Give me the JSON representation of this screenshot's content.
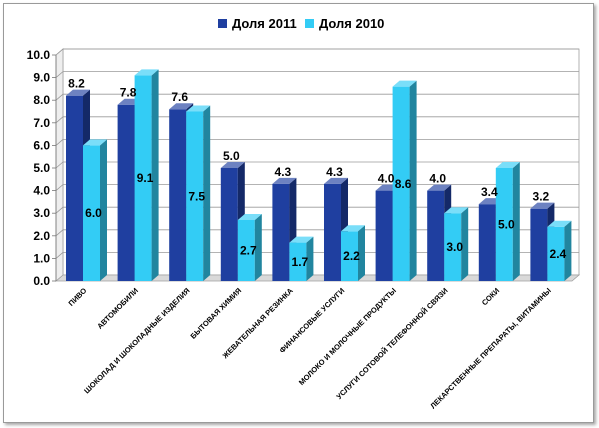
{
  "chart_data": {
    "type": "bar",
    "categories": [
      "ПИВО",
      "АВТОМОБИЛИ",
      "ШОКОЛАД И ШОКОЛАДНЫЕ ИЗДЕЛИЯ",
      "БЫТОВАЯ ХИМИЯ",
      "ЖЕВАТЕЛЬНАЯ РЕЗИНКА",
      "ФИНАНСОВЫЕ УСЛУГИ",
      "МОЛОКО И МОЛОЧНЫЕ ПРОДУКТЫ",
      "УСЛУГИ СОТОВОЙ ТЕЛЕФОННОЙ СВЯЗИ",
      "СОКИ",
      "ЛЕКАРСТВЕННЫЕ ПРЕПАРАТЫ, ВИТАМИНЫ"
    ],
    "series": [
      {
        "name": "Доля 2011",
        "color": "#1f3fa0",
        "values": [
          8.2,
          7.8,
          7.6,
          5.0,
          4.3,
          4.3,
          4.0,
          4.0,
          3.4,
          3.2
        ]
      },
      {
        "name": "Доля 2010",
        "color": "#33ccf5",
        "values": [
          6.0,
          9.1,
          7.5,
          2.7,
          1.7,
          2.2,
          8.6,
          3.0,
          5.0,
          2.4
        ]
      }
    ],
    "value_labels": {
      "Доля 2011": [
        "8.2",
        "7.8",
        "7.6",
        "5.0",
        "4.3",
        "4.3",
        "4.0",
        "4.0",
        "3.4",
        "3.2"
      ],
      "Доля 2010": [
        "6.0",
        "9.1",
        "7.5",
        "2.7",
        "1.7",
        "2.2",
        "8.6",
        "3.0",
        "5.0",
        "2.4"
      ]
    },
    "ylim": [
      0,
      10
    ],
    "yticks": [
      "0.0",
      "1.0",
      "2.0",
      "3.0",
      "4.0",
      "5.0",
      "6.0",
      "7.0",
      "8.0",
      "9.0",
      "10.0"
    ],
    "grid": true,
    "legend_position": "top",
    "style": "3d-bar"
  }
}
